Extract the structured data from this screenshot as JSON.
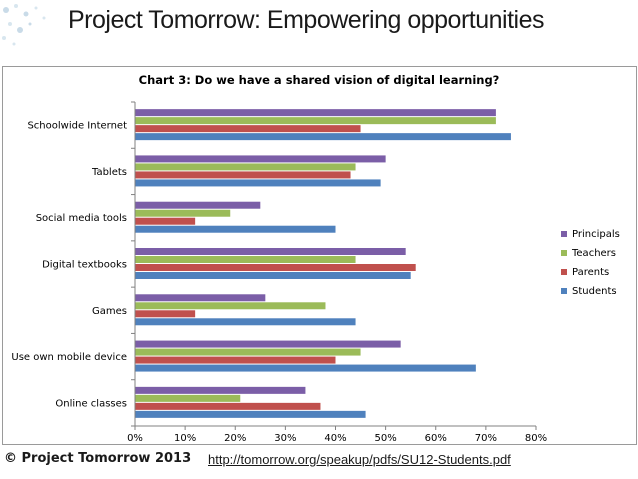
{
  "slide": {
    "title": "Project Tomorrow: Empowering opportunities",
    "footer_copyright": "© Project Tomorrow 2013",
    "footer_link": "http://tomorrow.org/speakup/pdfs/SU12-Students.pdf"
  },
  "chart_data": {
    "type": "bar",
    "orientation": "horizontal",
    "title": "Chart 3: Do we have a shared vision of digital learning?",
    "categories": [
      "Schoolwide Internet",
      "Tablets",
      "Social media tools",
      "Digital textbooks",
      "Games",
      "Use own mobile device",
      "Online classes"
    ],
    "series": [
      {
        "name": "Principals",
        "color": "#7B5EA7",
        "values": [
          72,
          50,
          25,
          54,
          26,
          53,
          34
        ]
      },
      {
        "name": "Teachers",
        "color": "#9BBB59",
        "values": [
          72,
          44,
          19,
          44,
          38,
          45,
          21
        ]
      },
      {
        "name": "Parents",
        "color": "#C0504D",
        "values": [
          45,
          43,
          12,
          56,
          12,
          40,
          37
        ]
      },
      {
        "name": "Students",
        "color": "#4F81BD",
        "values": [
          75,
          49,
          40,
          55,
          44,
          68,
          46
        ]
      }
    ],
    "xlim": [
      0,
      80
    ],
    "xticks": [
      "0%",
      "10%",
      "20%",
      "30%",
      "40%",
      "50%",
      "60%",
      "70%",
      "80%"
    ],
    "grid": false,
    "legend_position": "right"
  }
}
